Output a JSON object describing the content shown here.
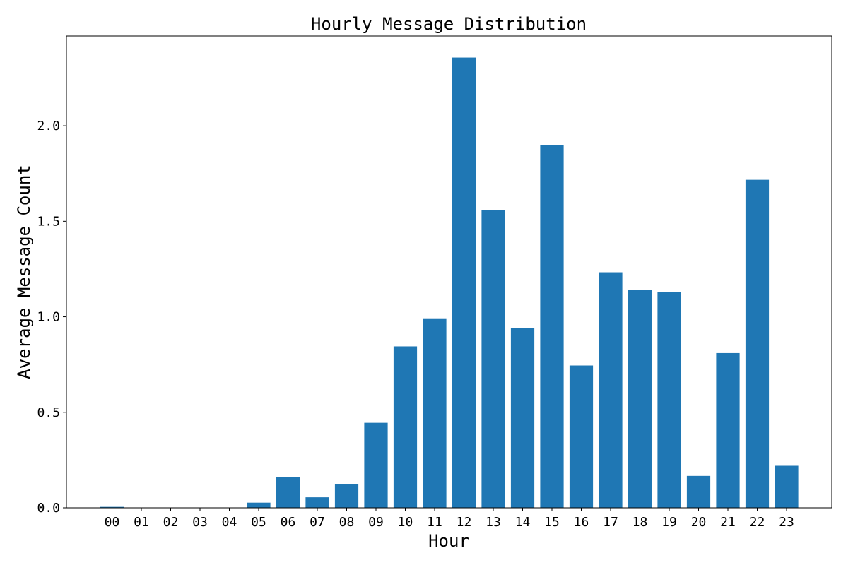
{
  "chart_data": {
    "type": "bar",
    "title": "Hourly Message Distribution",
    "xlabel": "Hour",
    "ylabel": "Average Message Count",
    "categories": [
      "00",
      "01",
      "02",
      "03",
      "04",
      "05",
      "06",
      "07",
      "08",
      "09",
      "10",
      "11",
      "12",
      "13",
      "14",
      "15",
      "16",
      "17",
      "18",
      "19",
      "20",
      "21",
      "22",
      "23"
    ],
    "values": [
      0.005,
      0,
      0,
      0,
      0,
      0.027,
      0.16,
      0.055,
      0.122,
      0.445,
      0.845,
      0.992,
      2.357,
      1.56,
      0.94,
      1.9,
      0.745,
      1.233,
      1.14,
      1.13,
      0.167,
      0.81,
      1.717,
      0.22
    ],
    "ylim": [
      0,
      2.47
    ],
    "yticks": [
      "0.0",
      "0.5",
      "1.0",
      "1.5",
      "2.0"
    ],
    "grid": false,
    "bar_color": "#1f77b4"
  }
}
